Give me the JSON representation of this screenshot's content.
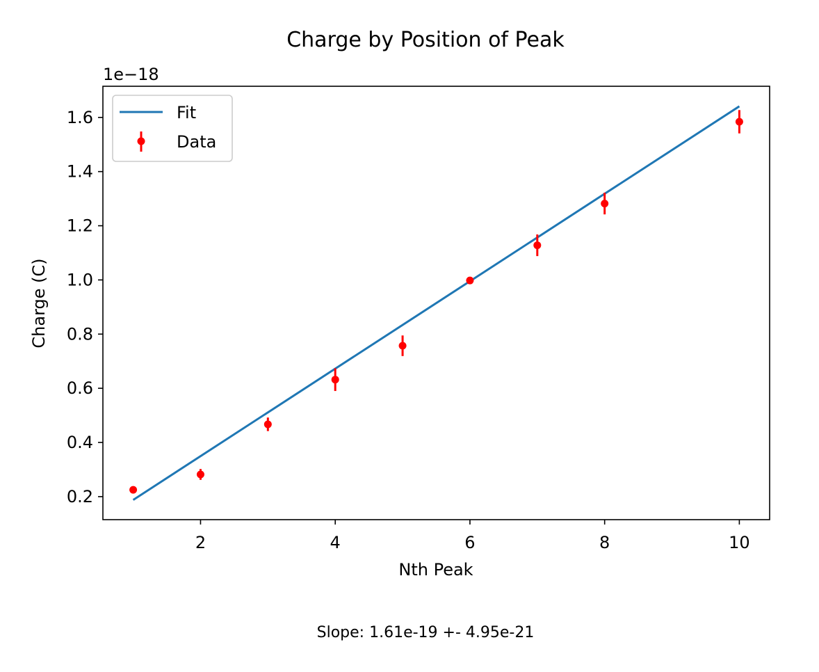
{
  "chart_data": {
    "type": "scatter",
    "title": "Charge by Position of Peak",
    "xlabel": "Nth Peak",
    "ylabel": "Charge (C)",
    "y_offset_label": "1e−18",
    "y_scale": 1e-18,
    "xlim": [
      0.55,
      10.45
    ],
    "ylim": [
      0.115,
      1.715
    ],
    "xticks": [
      2,
      4,
      6,
      8,
      10
    ],
    "xtick_labels": [
      "2",
      "4",
      "6",
      "8",
      "10"
    ],
    "yticks": [
      0.2,
      0.4,
      0.6,
      0.8,
      1.0,
      1.2,
      1.4,
      1.6
    ],
    "ytick_labels": [
      "0.2",
      "0.4",
      "0.6",
      "0.8",
      "1.0",
      "1.2",
      "1.4",
      "1.6"
    ],
    "grid": false,
    "legend_position": "top-left",
    "series": [
      {
        "name": "Fit",
        "kind": "line",
        "color": "#1f77b4",
        "x": [
          1,
          10
        ],
        "y": [
          0.188,
          1.641
        ]
      },
      {
        "name": "Data",
        "kind": "errorbar",
        "color": "#ff0000",
        "x": [
          1,
          2,
          3,
          4,
          5,
          6,
          7,
          8,
          9,
          10
        ],
        "y": [
          0.225,
          0.282,
          0.467,
          0.632,
          0.757,
          0.998,
          1.128,
          1.282,
          null,
          1.584
        ],
        "yerr": [
          0.012,
          0.02,
          0.025,
          0.042,
          0.038,
          0.008,
          0.04,
          0.04,
          null,
          0.043
        ]
      }
    ],
    "annotation": "Slope: 1.61e-19 +- 4.95e-21"
  }
}
